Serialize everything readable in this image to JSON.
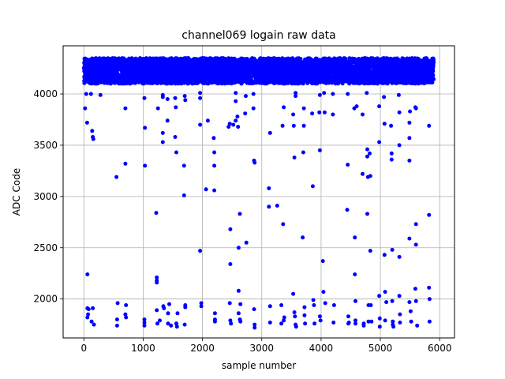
{
  "chart_data": {
    "type": "scatter",
    "title": "channel069 logain raw data",
    "xlabel": "sample number",
    "ylabel": "ADC Code",
    "xlim": [
      -350,
      6250
    ],
    "ylim": [
      1620,
      4470
    ],
    "xticks": [
      0,
      1000,
      2000,
      3000,
      4000,
      5000,
      6000
    ],
    "yticks": [
      2000,
      2500,
      3000,
      3500,
      4000
    ],
    "grid": true,
    "marker_color": "#0000ff",
    "band": {
      "x_range": [
        0,
        5900
      ],
      "y_range": [
        4100,
        4350
      ],
      "approx_points": 5200
    },
    "outliers": [
      [
        20,
        3860
      ],
      [
        40,
        4000
      ],
      [
        55,
        3720
      ],
      [
        60,
        2240
      ],
      [
        60,
        1910
      ],
      [
        60,
        1820
      ],
      [
        70,
        1850
      ],
      [
        80,
        1900
      ],
      [
        120,
        4000
      ],
      [
        140,
        3640
      ],
      [
        150,
        3580
      ],
      [
        160,
        3560
      ],
      [
        150,
        1910
      ],
      [
        130,
        1780
      ],
      [
        170,
        1750
      ],
      [
        280,
        3990
      ],
      [
        550,
        3190
      ],
      [
        570,
        1960
      ],
      [
        560,
        1800
      ],
      [
        560,
        1740
      ],
      [
        700,
        3860
      ],
      [
        710,
        1940
      ],
      [
        700,
        1850
      ],
      [
        700,
        3320
      ],
      [
        710,
        1820
      ],
      [
        1020,
        3960
      ],
      [
        1030,
        3670
      ],
      [
        1030,
        3300
      ],
      [
        1020,
        1800
      ],
      [
        1020,
        1770
      ],
      [
        1020,
        1740
      ],
      [
        1220,
        2840
      ],
      [
        1230,
        2210
      ],
      [
        1230,
        2180
      ],
      [
        1230,
        2160
      ],
      [
        1230,
        1890
      ],
      [
        1240,
        1760
      ],
      [
        1250,
        3860
      ],
      [
        1280,
        1790
      ],
      [
        1330,
        3990
      ],
      [
        1330,
        3970
      ],
      [
        1330,
        3620
      ],
      [
        1330,
        3530
      ],
      [
        1340,
        1930
      ],
      [
        1350,
        1910
      ],
      [
        1410,
        3950
      ],
      [
        1410,
        3740
      ],
      [
        1420,
        1860
      ],
      [
        1420,
        1760
      ],
      [
        1440,
        1950
      ],
      [
        1470,
        1740
      ],
      [
        1540,
        3960
      ],
      [
        1540,
        3580
      ],
      [
        1550,
        3870
      ],
      [
        1560,
        3430
      ],
      [
        1560,
        1760
      ],
      [
        1580,
        1860
      ],
      [
        1570,
        1730
      ],
      [
        1690,
        3010
      ],
      [
        1690,
        3300
      ],
      [
        1700,
        3980
      ],
      [
        1710,
        3940
      ],
      [
        1710,
        1940
      ],
      [
        1710,
        1920
      ],
      [
        1700,
        1750
      ],
      [
        1960,
        4010
      ],
      [
        1960,
        3960
      ],
      [
        1960,
        3700
      ],
      [
        1960,
        2470
      ],
      [
        1980,
        1960
      ],
      [
        1980,
        1930
      ],
      [
        2060,
        3070
      ],
      [
        2090,
        3740
      ],
      [
        2190,
        3570
      ],
      [
        2200,
        3430
      ],
      [
        2200,
        3300
      ],
      [
        2200,
        3060
      ],
      [
        2210,
        1860
      ],
      [
        2210,
        1800
      ],
      [
        2210,
        1780
      ],
      [
        2440,
        3680
      ],
      [
        2460,
        3710
      ],
      [
        2470,
        2680
      ],
      [
        2470,
        2340
      ],
      [
        2460,
        1960
      ],
      [
        2470,
        1790
      ],
      [
        2480,
        1760
      ],
      [
        2520,
        3700
      ],
      [
        2560,
        4010
      ],
      [
        2560,
        3930
      ],
      [
        2560,
        3740
      ],
      [
        2590,
        3780
      ],
      [
        2600,
        3680
      ],
      [
        2610,
        2500
      ],
      [
        2610,
        2080
      ],
      [
        2630,
        2830
      ],
      [
        2640,
        1950
      ],
      [
        2610,
        1860
      ],
      [
        2630,
        1800
      ],
      [
        2640,
        1780
      ],
      [
        2720,
        3810
      ],
      [
        2730,
        3980
      ],
      [
        2740,
        2550
      ],
      [
        2860,
        4000
      ],
      [
        2860,
        3860
      ],
      [
        2870,
        3350
      ],
      [
        2880,
        3330
      ],
      [
        2870,
        1900
      ],
      [
        2880,
        1750
      ],
      [
        2880,
        1720
      ],
      [
        3120,
        3080
      ],
      [
        3120,
        2900
      ],
      [
        3140,
        3620
      ],
      [
        3140,
        1930
      ],
      [
        3140,
        1770
      ],
      [
        3260,
        2910
      ],
      [
        3330,
        1940
      ],
      [
        3330,
        1760
      ],
      [
        3350,
        3690
      ],
      [
        3360,
        2730
      ],
      [
        3370,
        3870
      ],
      [
        3370,
        1790
      ],
      [
        3380,
        1820
      ],
      [
        3530,
        3800
      ],
      [
        3530,
        2050
      ],
      [
        3540,
        3690
      ],
      [
        3550,
        3380
      ],
      [
        3550,
        1870
      ],
      [
        3560,
        1830
      ],
      [
        3570,
        1750
      ],
      [
        3580,
        1730
      ],
      [
        3570,
        4010
      ],
      [
        3570,
        3980
      ],
      [
        3690,
        2600
      ],
      [
        3700,
        3430
      ],
      [
        3710,
        3690
      ],
      [
        3710,
        3860
      ],
      [
        3720,
        1920
      ],
      [
        3720,
        1840
      ],
      [
        3730,
        1760
      ],
      [
        3850,
        3810
      ],
      [
        3860,
        3100
      ],
      [
        3870,
        1990
      ],
      [
        3880,
        1940
      ],
      [
        3890,
        1760
      ],
      [
        3980,
        3990
      ],
      [
        3970,
        3820
      ],
      [
        3980,
        3450
      ],
      [
        3980,
        1830
      ],
      [
        3990,
        1790
      ],
      [
        4030,
        2370
      ],
      [
        4040,
        2070
      ],
      [
        4050,
        4010
      ],
      [
        4060,
        3820
      ],
      [
        4070,
        1960
      ],
      [
        4200,
        4000
      ],
      [
        4200,
        3800
      ],
      [
        4220,
        1940
      ],
      [
        4210,
        1770
      ],
      [
        4450,
        4000
      ],
      [
        4450,
        3310
      ],
      [
        4440,
        2870
      ],
      [
        4460,
        1830
      ],
      [
        4460,
        1760
      ],
      [
        4470,
        1770
      ],
      [
        4560,
        3860
      ],
      [
        4570,
        2600
      ],
      [
        4570,
        2240
      ],
      [
        4580,
        1980
      ],
      [
        4580,
        1790
      ],
      [
        4580,
        1760
      ],
      [
        4600,
        3880
      ],
      [
        4700,
        3800
      ],
      [
        4700,
        3220
      ],
      [
        4720,
        1760
      ],
      [
        4720,
        1740
      ],
      [
        4770,
        4010
      ],
      [
        4780,
        3390
      ],
      [
        4780,
        3460
      ],
      [
        4780,
        2830
      ],
      [
        4790,
        3190
      ],
      [
        4800,
        1940
      ],
      [
        4800,
        1780
      ],
      [
        4820,
        3420
      ],
      [
        4830,
        3200
      ],
      [
        4830,
        2470
      ],
      [
        4840,
        1940
      ],
      [
        4850,
        1780
      ],
      [
        4980,
        3880
      ],
      [
        4980,
        3530
      ],
      [
        4980,
        2030
      ],
      [
        4990,
        1810
      ],
      [
        4990,
        1730
      ],
      [
        5060,
        3970
      ],
      [
        5070,
        3710
      ],
      [
        5070,
        2430
      ],
      [
        5080,
        2070
      ],
      [
        5080,
        1790
      ],
      [
        5100,
        1970
      ],
      [
        5180,
        3690
      ],
      [
        5190,
        3420
      ],
      [
        5190,
        3360
      ],
      [
        5200,
        2480
      ],
      [
        5200,
        1980
      ],
      [
        5210,
        1780
      ],
      [
        5210,
        1750
      ],
      [
        5220,
        1730
      ],
      [
        5310,
        3990
      ],
      [
        5320,
        3820
      ],
      [
        5320,
        3500
      ],
      [
        5320,
        2410
      ],
      [
        5320,
        2030
      ],
      [
        5330,
        1850
      ],
      [
        5330,
        1770
      ],
      [
        5490,
        3720
      ],
      [
        5490,
        3570
      ],
      [
        5490,
        3350
      ],
      [
        5490,
        2590
      ],
      [
        5490,
        1970
      ],
      [
        5500,
        3830
      ],
      [
        5510,
        1880
      ],
      [
        5520,
        1780
      ],
      [
        5590,
        3870
      ],
      [
        5600,
        3860
      ],
      [
        5600,
        2530
      ],
      [
        5600,
        2730
      ],
      [
        5590,
        2100
      ],
      [
        5600,
        1980
      ],
      [
        5620,
        1740
      ],
      [
        5820,
        3690
      ],
      [
        5820,
        2820
      ],
      [
        5820,
        2110
      ],
      [
        5830,
        2000
      ],
      [
        5830,
        1780
      ]
    ]
  }
}
